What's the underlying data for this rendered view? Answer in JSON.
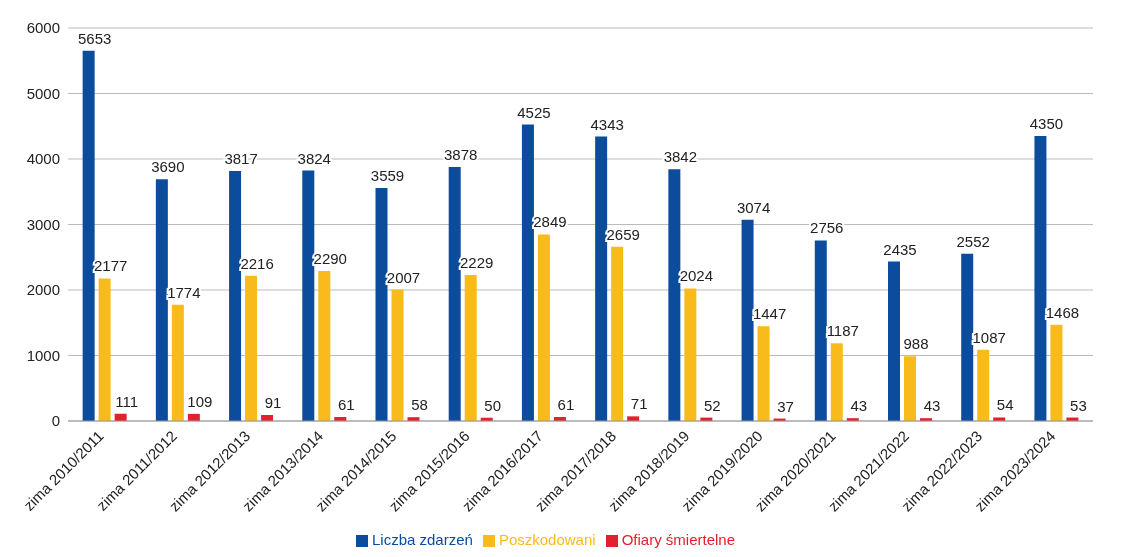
{
  "chart_data": {
    "type": "bar",
    "categories": [
      "zima 2010/2011",
      "zima 2011/2012",
      "zima 2012/2013",
      "zima 2013/2014",
      "zima 2014/2015",
      "zima 2015/2016",
      "zima 2016/2017",
      "zima 2017/2018",
      "zima 2018/2019",
      "zima 2019/2020",
      "zima 2020/2021",
      "zima 2021/2022",
      "zima 2022/2023",
      "zima 2023/2024"
    ],
    "series": [
      {
        "name": "Liczba zdarzeń",
        "color": "#0b4c9c",
        "values": [
          5653,
          3690,
          3817,
          3824,
          3559,
          3878,
          4525,
          4343,
          3842,
          3074,
          2756,
          2435,
          2552,
          4350
        ]
      },
      {
        "name": "Poszkodowani",
        "color": "#f9bb1b",
        "values": [
          2177,
          1774,
          2216,
          2290,
          2007,
          2229,
          2849,
          2659,
          2024,
          1447,
          1187,
          988,
          1087,
          1468
        ]
      },
      {
        "name": "Ofiary śmiertelne",
        "color": "#e3202c",
        "values": [
          111,
          109,
          91,
          61,
          58,
          50,
          61,
          71,
          52,
          37,
          43,
          43,
          54,
          53
        ]
      }
    ],
    "ylim": [
      0,
      6000
    ],
    "yticks": [
      0,
      1000,
      2000,
      3000,
      4000,
      5000,
      6000
    ],
    "grid": "y",
    "legend": "bottom",
    "data_labels": true
  }
}
